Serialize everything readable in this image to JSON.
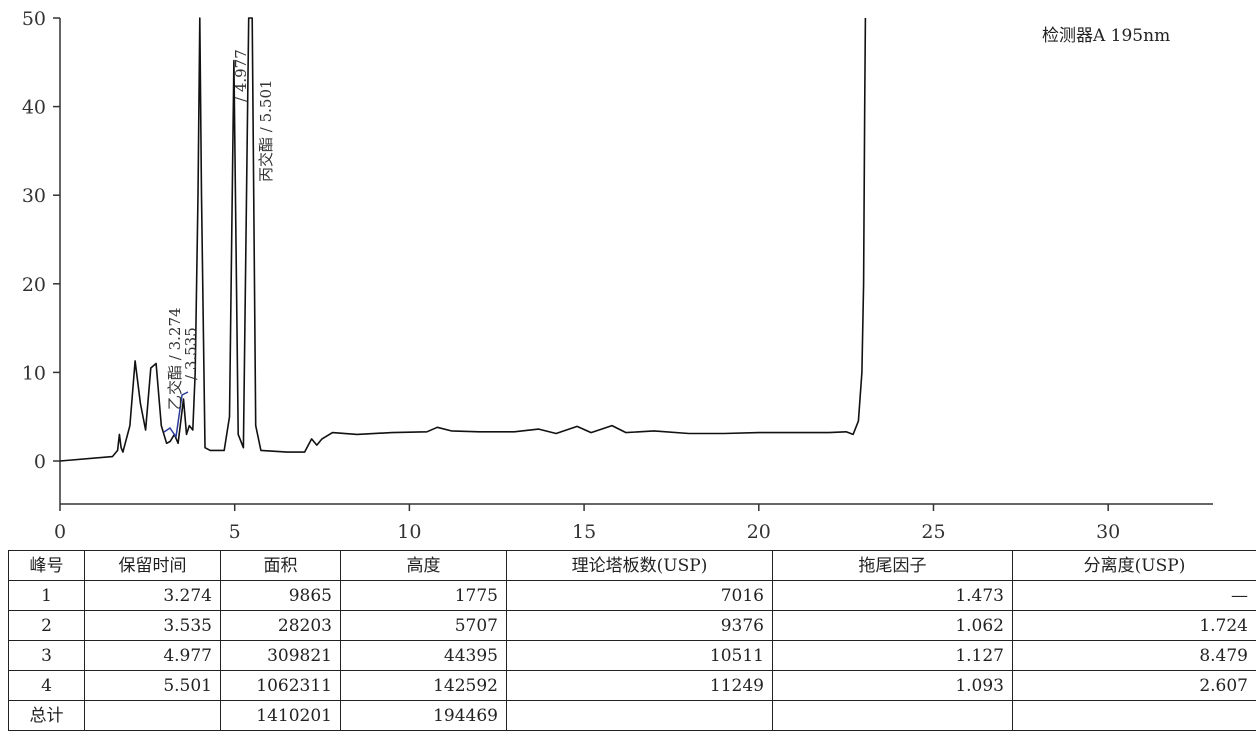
{
  "chart_data": {
    "type": "line",
    "detector_label": "检测器A 195nm",
    "xlim": [
      0,
      33
    ],
    "ylim": [
      -5,
      50
    ],
    "xticks": [
      0,
      5,
      10,
      15,
      20,
      25,
      30
    ],
    "yticks": [
      0,
      10,
      20,
      30,
      40,
      50
    ],
    "grid": false,
    "x": [
      0,
      1.5,
      1.65,
      1.7,
      1.75,
      1.8,
      2.0,
      2.15,
      2.3,
      2.45,
      2.6,
      2.75,
      2.9,
      3.05,
      3.15,
      3.274,
      3.38,
      3.535,
      3.62,
      3.7,
      3.8,
      3.87,
      3.95,
      4.0,
      4.05,
      4.15,
      4.3,
      4.7,
      4.85,
      4.977,
      5.1,
      5.25,
      5.4,
      5.501,
      5.6,
      5.75,
      6.5,
      7.0,
      7.2,
      7.35,
      7.5,
      7.8,
      8.5,
      9.5,
      10.5,
      10.8,
      11.2,
      12.0,
      13.0,
      13.7,
      14.2,
      14.8,
      15.2,
      15.8,
      16.2,
      17.0,
      18.0,
      19.0,
      20.0,
      21.0,
      22.0,
      22.5,
      22.7,
      22.85,
      22.95,
      23.0,
      23.03,
      23.05
    ],
    "y": [
      0,
      0.5,
      1.2,
      3.0,
      1.5,
      1.0,
      4.0,
      11.3,
      6.5,
      3.5,
      10.5,
      11.0,
      4.0,
      2.0,
      2.2,
      3.0,
      2.0,
      7.0,
      3.0,
      4.0,
      3.5,
      10.0,
      30.0,
      50,
      30.0,
      1.5,
      1.2,
      1.2,
      5.0,
      45.2,
      3.0,
      1.5,
      50,
      50,
      4.0,
      1.2,
      1.0,
      1.0,
      2.5,
      1.8,
      2.5,
      3.2,
      3.0,
      3.2,
      3.3,
      3.8,
      3.4,
      3.3,
      3.3,
      3.6,
      3.1,
      3.9,
      3.2,
      4.0,
      3.2,
      3.4,
      3.1,
      3.1,
      3.2,
      3.2,
      3.2,
      3.3,
      3.0,
      4.5,
      10.0,
      20.0,
      40.0,
      50
    ],
    "peaks": [
      {
        "label": "乙交酯 / 3.274",
        "rt": 3.274
      },
      {
        "label": "/ 3.535",
        "rt": 3.535
      },
      {
        "label": "/ 4.977",
        "rt": 4.977
      },
      {
        "label": "丙交酯 / 5.501",
        "rt": 5.501
      }
    ]
  },
  "table": {
    "headers": [
      "峰号",
      "保留时间",
      "面积",
      "高度",
      "理论塔板数(USP)",
      "拖尾因子",
      "分离度(USP)"
    ],
    "rows": [
      [
        "1",
        "3.274",
        "9865",
        "1775",
        "7016",
        "1.473",
        "—"
      ],
      [
        "2",
        "3.535",
        "28203",
        "5707",
        "9376",
        "1.062",
        "1.724"
      ],
      [
        "3",
        "4.977",
        "309821",
        "44395",
        "10511",
        "1.127",
        "8.479"
      ],
      [
        "4",
        "5.501",
        "1062311",
        "142592",
        "11249",
        "1.093",
        "2.607"
      ],
      [
        "总计",
        "",
        "1410201",
        "194469",
        "",
        "",
        ""
      ]
    ]
  }
}
